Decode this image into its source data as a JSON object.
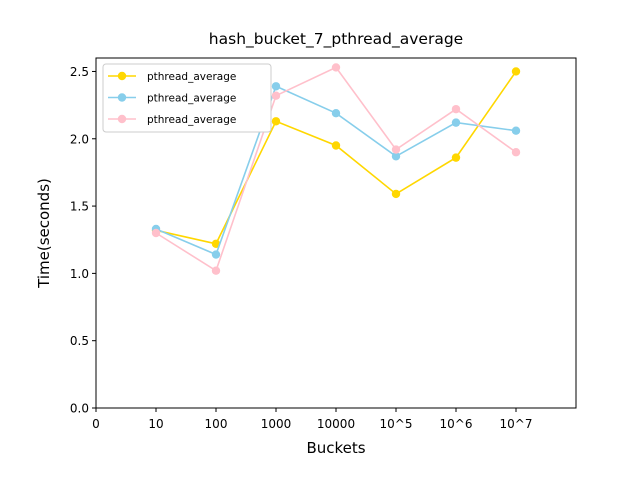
{
  "chart_data": {
    "type": "line",
    "title": "hash_bucket_7_pthread_average",
    "xlabel": "Buckets",
    "ylabel": "Time(seconds)",
    "x_tick_labels": [
      "0",
      "10",
      "100",
      "1000",
      "10000",
      "10^5",
      "10^6",
      "10^7"
    ],
    "categories": [
      "10",
      "100",
      "1000",
      "10000",
      "10^5",
      "10^6",
      "10^7"
    ],
    "ylim": [
      0,
      2.6
    ],
    "y_ticks": [
      "0.0",
      "0.5",
      "1.0",
      "1.5",
      "2.0",
      "2.5"
    ],
    "grid": false,
    "legend_position": "top-left",
    "series": [
      {
        "name": "pthread_average",
        "color": "#FFD700",
        "values": [
          1.32,
          1.22,
          2.13,
          1.95,
          1.59,
          1.86,
          2.5
        ]
      },
      {
        "name": "pthread_average",
        "color": "#87CEEB",
        "values": [
          1.33,
          1.14,
          2.39,
          2.19,
          1.87,
          2.12,
          2.06
        ]
      },
      {
        "name": "pthread_average",
        "color": "#FFC0CB",
        "values": [
          1.3,
          1.02,
          2.32,
          2.53,
          1.92,
          2.22,
          1.9
        ]
      }
    ]
  }
}
